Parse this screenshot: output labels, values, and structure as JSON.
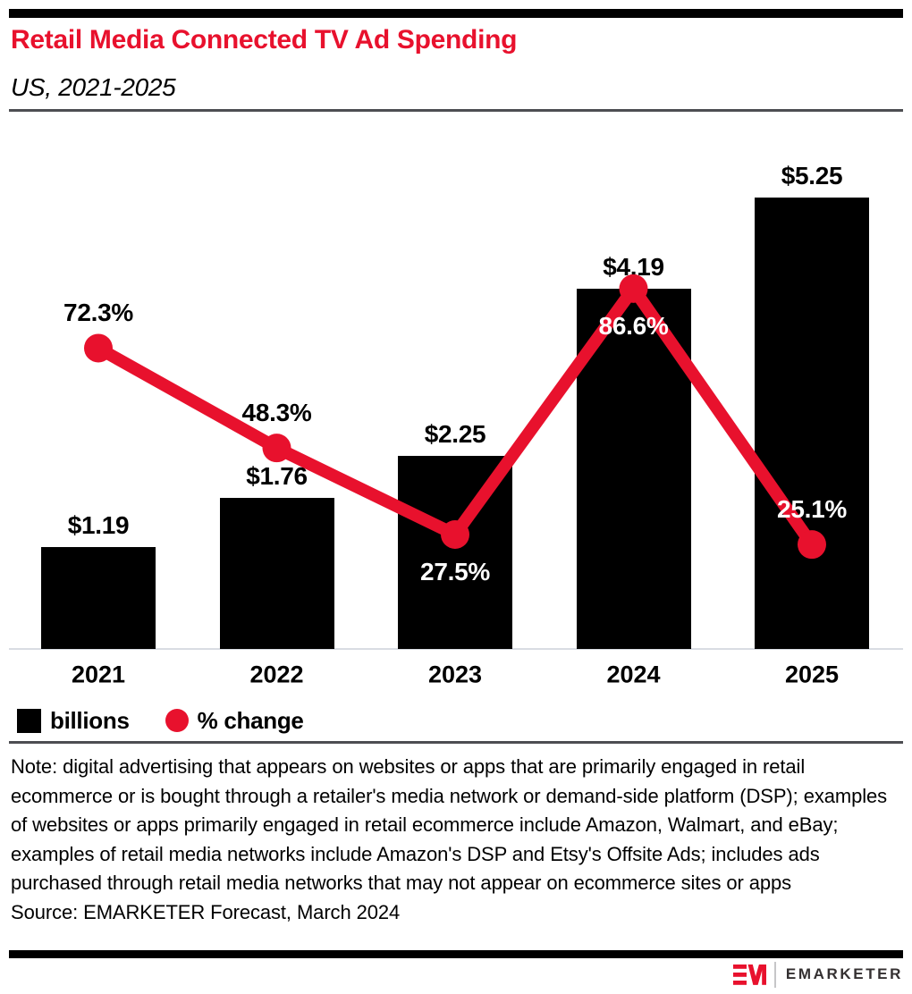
{
  "header": {
    "title": "Retail Media Connected TV Ad Spending",
    "subtitle": "US, 2021-2025",
    "accent_color": "#e8112d"
  },
  "chart_data": {
    "type": "bar",
    "subtype": "bar+line combo",
    "title": "Retail Media Connected TV Ad Spending",
    "subtitle": "US, 2021-2025",
    "categories": [
      "2021",
      "2022",
      "2023",
      "2024",
      "2025"
    ],
    "series": [
      {
        "name": "billions",
        "type": "bar",
        "color": "#000000",
        "values": [
          1.19,
          1.76,
          2.25,
          4.19,
          5.25
        ],
        "labels": [
          "$1.19",
          "$1.76",
          "$2.25",
          "$4.19",
          "$5.25"
        ]
      },
      {
        "name": "% change",
        "type": "line",
        "color": "#e8112d",
        "values": [
          72.3,
          48.3,
          27.5,
          86.6,
          25.1
        ],
        "labels": [
          "72.3%",
          "48.3%",
          "27.5%",
          "86.6%",
          "25.1%"
        ],
        "label_placement": [
          "above",
          "above",
          "below",
          "below",
          "above"
        ],
        "label_colors": [
          "#000000",
          "#000000",
          "#ffffff",
          "#ffffff",
          "#ffffff"
        ]
      }
    ],
    "bar_axis_range": [
      0,
      6.1
    ],
    "pct_axis_range": [
      0,
      126
    ],
    "grid": false,
    "legend_position": "bottom-left"
  },
  "legend": {
    "items": [
      {
        "label": "billions",
        "swatch": "square",
        "color": "#000000"
      },
      {
        "label": "% change",
        "swatch": "circle",
        "color": "#e8112d"
      }
    ]
  },
  "note": "Note: digital advertising that appears on websites or apps that are primarily engaged in retail ecommerce or is bought through a retailer's media network or demand-side platform (DSP); examples of websites or apps primarily engaged in retail ecommerce include Amazon, Walmart, and eBay; examples of retail media networks include Amazon's DSP and Etsy's Offsite Ads; includes ads purchased through retail media networks that may not appear on ecommerce sites or apps",
  "source": "Source: EMARKETER Forecast, March 2024",
  "footer": {
    "monogram": "EM",
    "wordmark": "EMARKETER"
  }
}
